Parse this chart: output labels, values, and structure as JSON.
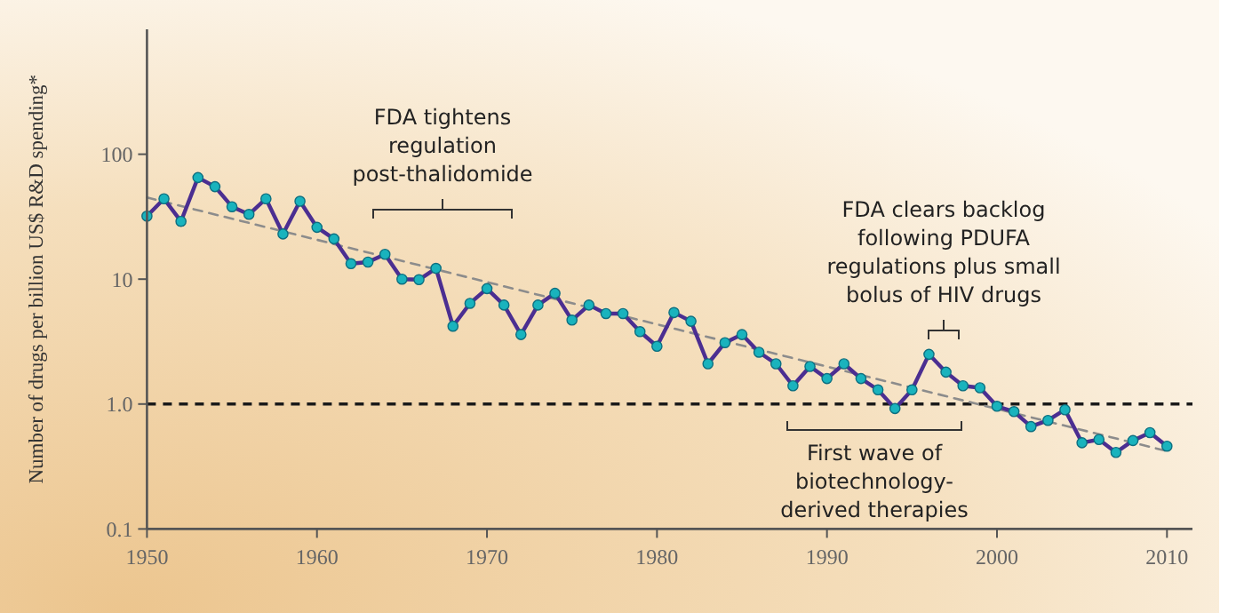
{
  "chart_data": {
    "type": "line",
    "ylabel": "Number of drugs per billion US$ R&D spending*",
    "log": "y",
    "xlim": [
      1950,
      2011.5
    ],
    "xticks": [
      1950,
      1960,
      1970,
      1980,
      1990,
      2000,
      2010
    ],
    "ylim": [
      0.1,
      1000
    ],
    "yticks": [
      0.1,
      {
        "value": 1,
        "label": "1.0"
      },
      10,
      100
    ],
    "x": [
      1950,
      1951,
      1952,
      1953,
      1954,
      1955,
      1956,
      1957,
      1958,
      1959,
      1960,
      1961,
      1962,
      1963,
      1964,
      1965,
      1966,
      1967,
      1968,
      1969,
      1970,
      1971,
      1972,
      1973,
      1974,
      1975,
      1976,
      1977,
      1978,
      1979,
      1980,
      1981,
      1982,
      1983,
      1984,
      1985,
      1986,
      1987,
      1988,
      1989,
      1990,
      1991,
      1992,
      1993,
      1994,
      1995,
      1996,
      1997,
      1998,
      1999,
      2000,
      2001,
      2002,
      2003,
      2004,
      2005,
      2006,
      2007,
      2008,
      2009,
      2010
    ],
    "series": [
      {
        "color": "#4b2e91",
        "marker": "circle",
        "values": [
          32,
          44,
          29,
          65,
          55,
          38,
          33,
          44,
          23,
          42,
          26,
          21,
          13.3,
          13.7,
          15.8,
          10,
          9.9,
          12.2,
          4.2,
          6.4,
          8.4,
          6.2,
          3.6,
          6.2,
          7.7,
          4.7,
          6.2,
          5.3,
          5.3,
          3.8,
          2.9,
          5.4,
          4.6,
          2.1,
          3.1,
          3.6,
          2.6,
          2.1,
          1.4,
          2.0,
          1.6,
          2.1,
          1.6,
          1.3,
          0.92,
          1.3,
          2.5,
          1.8,
          1.4,
          1.35,
          0.96,
          0.87,
          0.66,
          0.74,
          0.9,
          0.49,
          0.52,
          0.41,
          0.51,
          0.59,
          0.46
        ]
      },
      {
        "type": "line",
        "color": "#8c8c8c",
        "line_style": "dashed",
        "marker": "none",
        "x": [
          1950,
          2010
        ],
        "values": [
          45,
          0.42
        ]
      }
    ],
    "ref_lines": [
      {
        "axis": "y",
        "value": 1,
        "color": "#1a1a1a",
        "line_style": "dashed"
      }
    ],
    "annotations": [
      "FDA tightens\nregulation\npost-thalidomide",
      "FDA clears backlog\nfollowing PDUFA\nregulations plus small\nbolus of HIV drugs",
      "First wave of\nbiotechnology-\nderived therapies"
    ],
    "grid": false
  }
}
